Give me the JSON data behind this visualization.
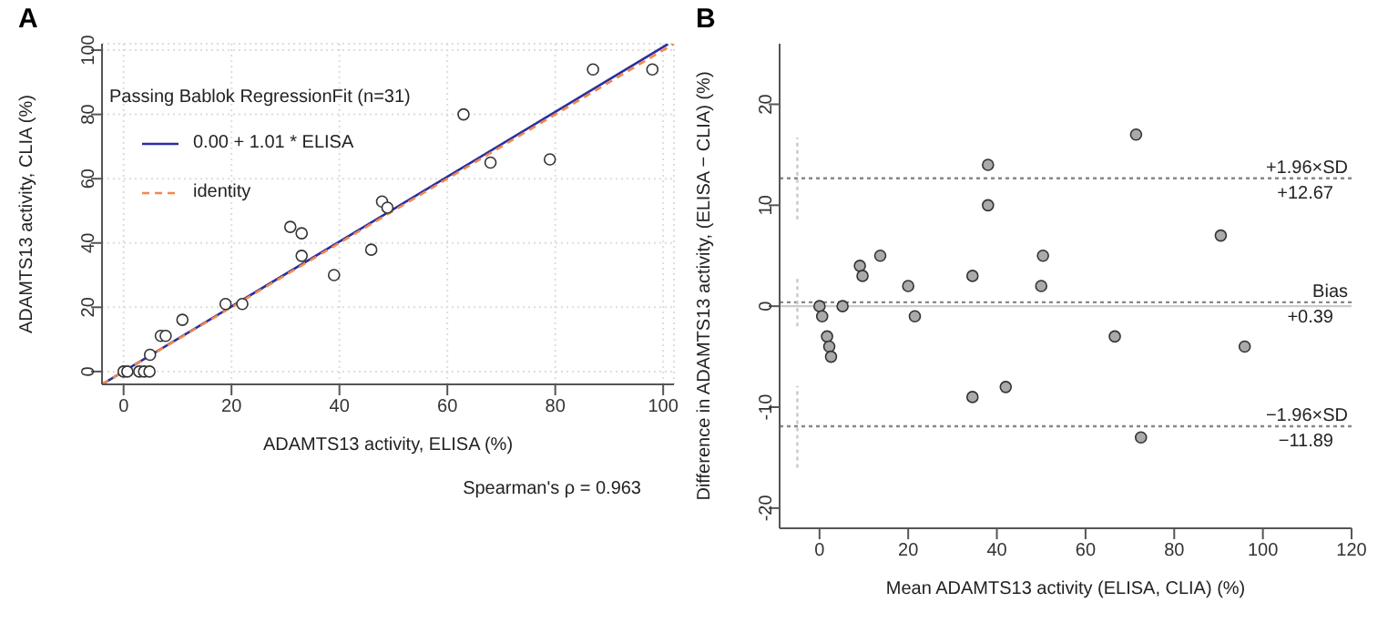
{
  "chart_data": [
    {
      "type": "scatter",
      "title": "A",
      "xlabel": "ADAMTS13 activity, ELISA (%)",
      "ylabel": "ADAMTS13 activity, CLIA (%)",
      "legend_title": "Passing Bablok RegressionFit (n=31)",
      "legend": "top left",
      "grid": true,
      "xlim": [
        -4,
        102
      ],
      "ylim": [
        -4,
        102
      ],
      "xticks": [
        0,
        20,
        40,
        60,
        80,
        100
      ],
      "yticks": [
        0,
        20,
        40,
        60,
        80,
        100
      ],
      "series": [
        {
          "marker": "circle",
          "color": "#ffffff",
          "x": [
            0,
            0.7,
            2.9,
            3.8,
            4.8,
            4.9,
            6.9,
            7.8,
            10.9,
            18.9,
            22,
            30.9,
            33,
            33,
            39,
            45.9,
            47.9,
            48.9,
            63,
            68,
            79,
            87,
            98
          ],
          "values": [
            0,
            0,
            0,
            0,
            0,
            5.2,
            11.1,
            11.1,
            16.1,
            21,
            21,
            45,
            43,
            36,
            30,
            37.9,
            52.9,
            51,
            80,
            65,
            66,
            94,
            94
          ]
        },
        {
          "type": "line",
          "name": "0.00 + 1.01 * ELISA",
          "color": "#2b2f9e",
          "line_style": "solid",
          "x": [
            -3.9,
            100.9
          ],
          "values": [
            -3.9,
            101.9
          ]
        },
        {
          "type": "line",
          "name": "identity",
          "color": "#f4874b",
          "line_style": "dashed",
          "x": [
            -4,
            102
          ],
          "values": [
            -4,
            102
          ]
        }
      ],
      "annotations": [
        "Spearman's ρ = 0.963"
      ]
    },
    {
      "type": "scatter",
      "title": "B",
      "xlabel": "Mean ADAMTS13 activity (ELISA, CLIA) (%)",
      "ylabel": "Difference in ADAMTS13 activity, (ELISA − CLIA) (%)",
      "grid": false,
      "xlim": [
        -9,
        120
      ],
      "ylim": [
        -22,
        26
      ],
      "xticks": [
        0,
        20,
        40,
        60,
        80,
        100,
        120
      ],
      "yticks": [
        -20,
        -10,
        0,
        10,
        20
      ],
      "series": [
        {
          "marker": "circle",
          "color": "#aaaaaa",
          "x": [
            0,
            0.6,
            1.7,
            2.2,
            2.6,
            5.2,
            9.1,
            9.7,
            13.7,
            20,
            21.5,
            34.5,
            34.5,
            38,
            38,
            42,
            50.4,
            50,
            66.6,
            71.4,
            72.5,
            90.5,
            95.9
          ],
          "values": [
            0,
            -1,
            -3,
            -4,
            -5,
            0,
            4,
            3,
            5,
            2,
            -1,
            3,
            -9,
            14,
            10,
            -8,
            5,
            2,
            -3,
            17,
            -13,
            7,
            -4
          ]
        },
        {
          "type": "line",
          "line_style": "dotted",
          "color": "#cccccc",
          "x": [
            -5,
            -5
          ],
          "values": [
            8.6,
            16.7
          ]
        },
        {
          "type": "line",
          "line_style": "dotted",
          "color": "#cccccc",
          "x": [
            -5,
            -5
          ],
          "values": [
            -2,
            2.7
          ]
        },
        {
          "type": "line",
          "line_style": "dotted",
          "color": "#cccccc",
          "x": [
            -5,
            -5
          ],
          "values": [
            -16,
            -7.9
          ]
        }
      ],
      "ref_lines": [
        {
          "axis": "y",
          "value": 0,
          "color": "#cccccc",
          "line_style": "solid"
        },
        {
          "axis": "y",
          "value": 12.67,
          "label": "+1.96×SD\n+12.67",
          "color": "#888888",
          "line_style": "dotted"
        },
        {
          "axis": "y",
          "value": 0.39,
          "label": "Bias\n+0.39",
          "color": "#888888",
          "line_style": "dotted"
        },
        {
          "axis": "y",
          "value": -11.89,
          "label": "−1.96×SD\n−11.89",
          "color": "#888888",
          "line_style": "dotted"
        }
      ]
    }
  ]
}
